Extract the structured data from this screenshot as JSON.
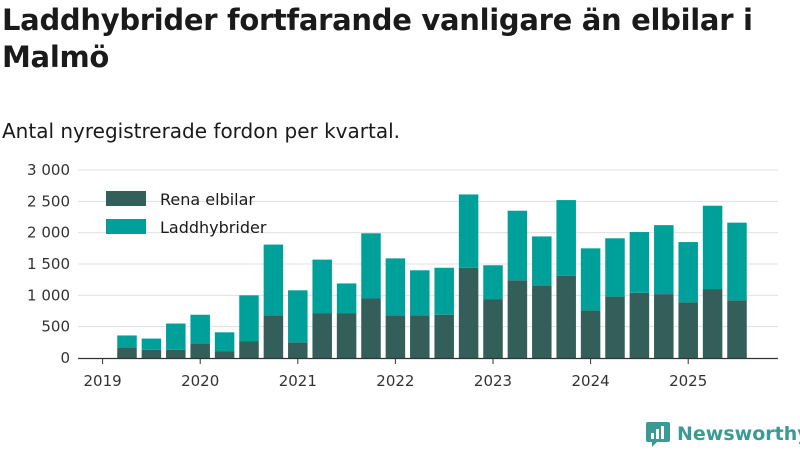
{
  "title": "Laddhybrider fortfarande vanligare än elbilar i Malmö",
  "subtitle": "Antal nyregistrerade fordon per kvartal.",
  "brand": {
    "name": "Newsworthy",
    "color": "#3a9a94",
    "icon": "bar-chart-logo-icon"
  },
  "colors": {
    "rena_elbilar": "#345e5a",
    "laddhybrider": "#00a09a",
    "grid": "#e0e0e0",
    "axis": "#333333"
  },
  "chart_data": {
    "type": "bar",
    "stacked": true,
    "title": "Laddhybrider fortfarande vanligare än elbilar i Malmö",
    "subtitle": "Antal nyregistrerade fordon per kvartal.",
    "xlabel": "",
    "ylabel": "",
    "ylim": [
      0,
      3000
    ],
    "yticks": [
      0,
      500,
      1000,
      1500,
      2000,
      2500,
      3000
    ],
    "ytick_labels": [
      "0",
      "500",
      "1 000",
      "1 500",
      "2 000",
      "2 500",
      "3 000"
    ],
    "xticks": [
      "2019",
      "2020",
      "2021",
      "2022",
      "2023",
      "2024",
      "2025"
    ],
    "grid": true,
    "legend_position": "top-left",
    "categories": [
      "2019 Q2",
      "2019 Q3",
      "2019 Q4",
      "2020 Q1",
      "2020 Q2",
      "2020 Q3",
      "2020 Q4",
      "2021 Q1",
      "2021 Q2",
      "2021 Q3",
      "2021 Q4",
      "2022 Q1",
      "2022 Q2",
      "2022 Q3",
      "2022 Q4",
      "2023 Q1",
      "2023 Q2",
      "2023 Q3",
      "2023 Q4",
      "2024 Q1",
      "2024 Q2",
      "2024 Q3",
      "2024 Q4",
      "2025 Q1",
      "2025 Q2",
      "2025 Q3"
    ],
    "series": [
      {
        "name": "Rena elbilar",
        "values": [
          170,
          130,
          130,
          230,
          110,
          270,
          680,
          250,
          710,
          710,
          950,
          680,
          680,
          690,
          1440,
          940,
          1240,
          1160,
          1310,
          760,
          980,
          1040,
          1020,
          890,
          1100,
          920
        ]
      },
      {
        "name": "Laddhybrider",
        "values": [
          190,
          180,
          420,
          460,
          300,
          730,
          1130,
          830,
          860,
          480,
          1040,
          910,
          720,
          750,
          1170,
          540,
          1110,
          780,
          1210,
          990,
          930,
          970,
          1100,
          960,
          1330,
          1240
        ]
      }
    ]
  }
}
